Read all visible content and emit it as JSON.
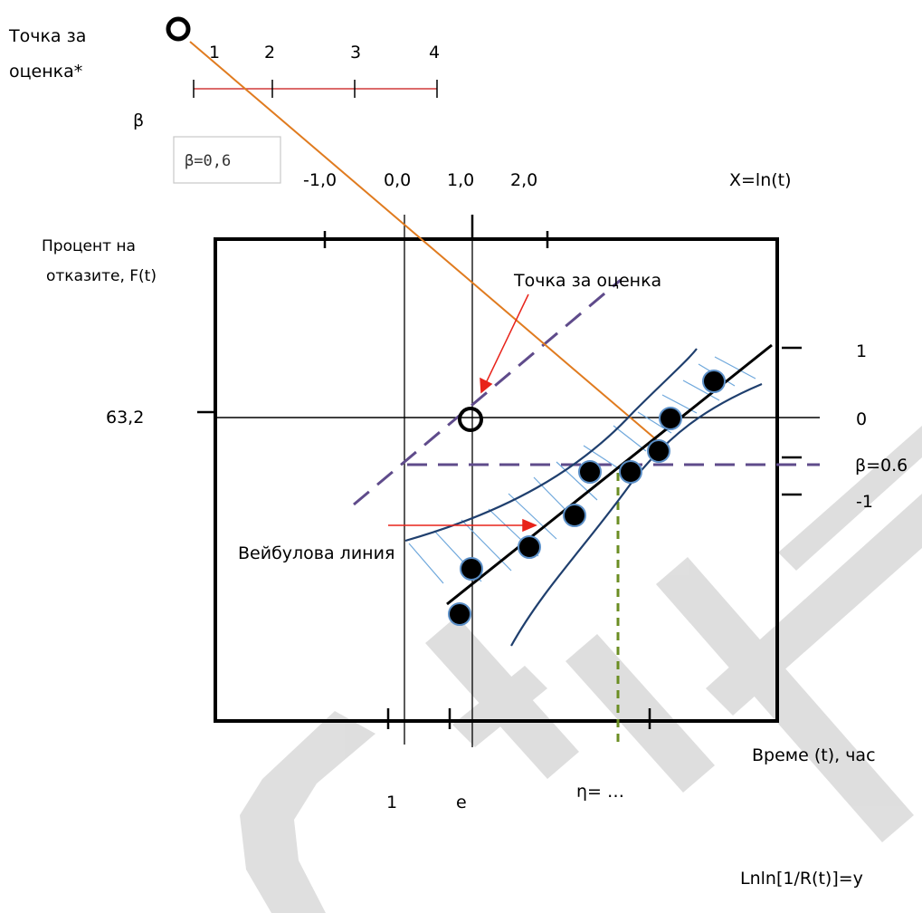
{
  "top_left_label_line1": "Точка за",
  "top_left_label_line2": "оценка*",
  "beta_symbol": "β",
  "beta_scale_ticks": [
    "1",
    "2",
    "3",
    "4"
  ],
  "beta_box_text": "β=0,6",
  "x_ln_ticks": [
    "-1,0",
    "0,0",
    "1,0",
    "2,0"
  ],
  "x_ln_axis_label": "X=ln(t)",
  "y_axis_label_line1": "Процент на",
  "y_axis_label_line2": "отказите, F(t)",
  "estimate_point_label": "Точка за оценка",
  "y_value_label": "63,2",
  "right_ticks": [
    "1",
    "0",
    "β=0.6",
    "-1"
  ],
  "weibull_line_label": "Вейбулова линия",
  "time_axis_label": "Време (t), час",
  "bottom_ticks": [
    "1",
    "e"
  ],
  "eta_label": "η= …",
  "y_axis_formula": "Lnln[1/R(t)]=y",
  "colors": {
    "frame": "#000000",
    "estimate_line": "#e07b1f",
    "dashed_guides": "#5f4b8b",
    "confidence_band": "#1f3f6e",
    "hatching": "#6fa8dc",
    "arrow": "#e8231a",
    "eta_guide": "#6b8e23",
    "beta_scale": "#d03a3a",
    "watermark": "#d9d9d9"
  }
}
